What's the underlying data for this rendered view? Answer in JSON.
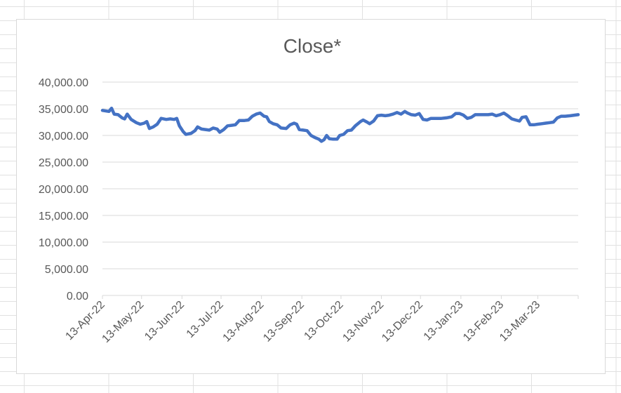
{
  "chart_data": {
    "type": "line",
    "title": "Close*",
    "xlabel": "",
    "ylabel": "",
    "ylim": [
      0,
      40000
    ],
    "y_ticks": [
      "0.00",
      "5,000.00",
      "10,000.00",
      "15,000.00",
      "20,000.00",
      "25,000.00",
      "30,000.00",
      "35,000.00",
      "40,000.00"
    ],
    "x_ticks": [
      "13-Apr-22",
      "13-May-22",
      "13-Jun-22",
      "13-Jul-22",
      "13-Aug-22",
      "13-Sep-22",
      "13-Oct-22",
      "13-Nov-22",
      "13-Dec-22",
      "13-Jan-23",
      "13-Feb-23",
      "13-Mar-23"
    ],
    "xlim": [
      "2022-04-13",
      "2023-04-13"
    ],
    "grid": true,
    "legend": "none",
    "line_color": "#4472c4",
    "series": [
      {
        "points": [
          [
            "2022-04-13",
            34700
          ],
          [
            "2022-04-18",
            34500
          ],
          [
            "2022-04-20",
            35100
          ],
          [
            "2022-04-22",
            34000
          ],
          [
            "2022-04-25",
            33900
          ],
          [
            "2022-04-28",
            33300
          ],
          [
            "2022-04-30",
            33100
          ],
          [
            "2022-05-02",
            34000
          ],
          [
            "2022-05-05",
            33000
          ],
          [
            "2022-05-09",
            32400
          ],
          [
            "2022-05-12",
            32100
          ],
          [
            "2022-05-15",
            32300
          ],
          [
            "2022-05-17",
            32600
          ],
          [
            "2022-05-19",
            31300
          ],
          [
            "2022-05-22",
            31600
          ],
          [
            "2022-05-25",
            32100
          ],
          [
            "2022-05-28",
            33200
          ],
          [
            "2022-06-01",
            33000
          ],
          [
            "2022-06-04",
            33100
          ],
          [
            "2022-06-07",
            33000
          ],
          [
            "2022-06-09",
            33200
          ],
          [
            "2022-06-11",
            31800
          ],
          [
            "2022-06-14",
            30700
          ],
          [
            "2022-06-16",
            30200
          ],
          [
            "2022-06-20",
            30400
          ],
          [
            "2022-06-23",
            30900
          ],
          [
            "2022-06-25",
            31600
          ],
          [
            "2022-06-28",
            31200
          ],
          [
            "2022-07-01",
            31100
          ],
          [
            "2022-07-04",
            31000
          ],
          [
            "2022-07-07",
            31400
          ],
          [
            "2022-07-10",
            31200
          ],
          [
            "2022-07-12",
            30600
          ],
          [
            "2022-07-15",
            31100
          ],
          [
            "2022-07-18",
            31800
          ],
          [
            "2022-07-21",
            31900
          ],
          [
            "2022-07-24",
            32000
          ],
          [
            "2022-07-27",
            32800
          ],
          [
            "2022-07-31",
            32800
          ],
          [
            "2022-08-03",
            32900
          ],
          [
            "2022-08-06",
            33600
          ],
          [
            "2022-08-09",
            34000
          ],
          [
            "2022-08-12",
            34200
          ],
          [
            "2022-08-15",
            33600
          ],
          [
            "2022-08-17",
            33500
          ],
          [
            "2022-08-19",
            32600
          ],
          [
            "2022-08-22",
            32200
          ],
          [
            "2022-08-25",
            32000
          ],
          [
            "2022-08-28",
            31400
          ],
          [
            "2022-09-01",
            31300
          ],
          [
            "2022-09-04",
            32000
          ],
          [
            "2022-09-07",
            32300
          ],
          [
            "2022-09-09",
            32100
          ],
          [
            "2022-09-11",
            31100
          ],
          [
            "2022-09-14",
            31000
          ],
          [
            "2022-09-17",
            30900
          ],
          [
            "2022-09-20",
            30000
          ],
          [
            "2022-09-23",
            29600
          ],
          [
            "2022-09-26",
            29300
          ],
          [
            "2022-09-28",
            28900
          ],
          [
            "2022-09-30",
            29200
          ],
          [
            "2022-10-02",
            30000
          ],
          [
            "2022-10-04",
            29400
          ],
          [
            "2022-10-07",
            29300
          ],
          [
            "2022-10-10",
            29300
          ],
          [
            "2022-10-12",
            30000
          ],
          [
            "2022-10-15",
            30200
          ],
          [
            "2022-10-18",
            30900
          ],
          [
            "2022-10-21",
            31000
          ],
          [
            "2022-10-24",
            31800
          ],
          [
            "2022-10-26",
            32200
          ],
          [
            "2022-10-28",
            32600
          ],
          [
            "2022-10-30",
            32900
          ],
          [
            "2022-11-02",
            32500
          ],
          [
            "2022-11-04",
            32200
          ],
          [
            "2022-11-07",
            32700
          ],
          [
            "2022-11-10",
            33700
          ],
          [
            "2022-11-13",
            33800
          ],
          [
            "2022-11-16",
            33700
          ],
          [
            "2022-11-19",
            33800
          ],
          [
            "2022-11-22",
            34000
          ],
          [
            "2022-11-25",
            34300
          ],
          [
            "2022-11-28",
            34000
          ],
          [
            "2022-12-01",
            34500
          ],
          [
            "2022-12-03",
            34200
          ],
          [
            "2022-12-06",
            33900
          ],
          [
            "2022-12-09",
            33800
          ],
          [
            "2022-12-12",
            34100
          ],
          [
            "2022-12-15",
            33000
          ],
          [
            "2022-12-18",
            32900
          ],
          [
            "2022-12-21",
            33200
          ],
          [
            "2022-12-25",
            33200
          ],
          [
            "2022-12-29",
            33200
          ],
          [
            "2023-01-02",
            33300
          ],
          [
            "2023-01-06",
            33500
          ],
          [
            "2023-01-09",
            34100
          ],
          [
            "2023-01-12",
            34100
          ],
          [
            "2023-01-15",
            33800
          ],
          [
            "2023-01-18",
            33200
          ],
          [
            "2023-01-21",
            33400
          ],
          [
            "2023-01-24",
            33900
          ],
          [
            "2023-01-28",
            33900
          ],
          [
            "2023-01-31",
            33900
          ],
          [
            "2023-02-03",
            33900
          ],
          [
            "2023-02-06",
            34000
          ],
          [
            "2023-02-09",
            33700
          ],
          [
            "2023-02-12",
            33900
          ],
          [
            "2023-02-15",
            34200
          ],
          [
            "2023-02-18",
            33700
          ],
          [
            "2023-02-21",
            33100
          ],
          [
            "2023-02-24",
            32900
          ],
          [
            "2023-02-27",
            32700
          ],
          [
            "2023-03-01",
            33400
          ],
          [
            "2023-03-04",
            33500
          ],
          [
            "2023-03-07",
            32000
          ],
          [
            "2023-03-10",
            32000
          ],
          [
            "2023-03-13",
            32100
          ],
          [
            "2023-03-16",
            32200
          ],
          [
            "2023-03-19",
            32300
          ],
          [
            "2023-03-22",
            32400
          ],
          [
            "2023-03-25",
            32500
          ],
          [
            "2023-03-28",
            33300
          ],
          [
            "2023-03-31",
            33600
          ],
          [
            "2023-04-03",
            33600
          ],
          [
            "2023-04-07",
            33700
          ],
          [
            "2023-04-10",
            33800
          ],
          [
            "2023-04-13",
            33900
          ]
        ]
      }
    ]
  }
}
